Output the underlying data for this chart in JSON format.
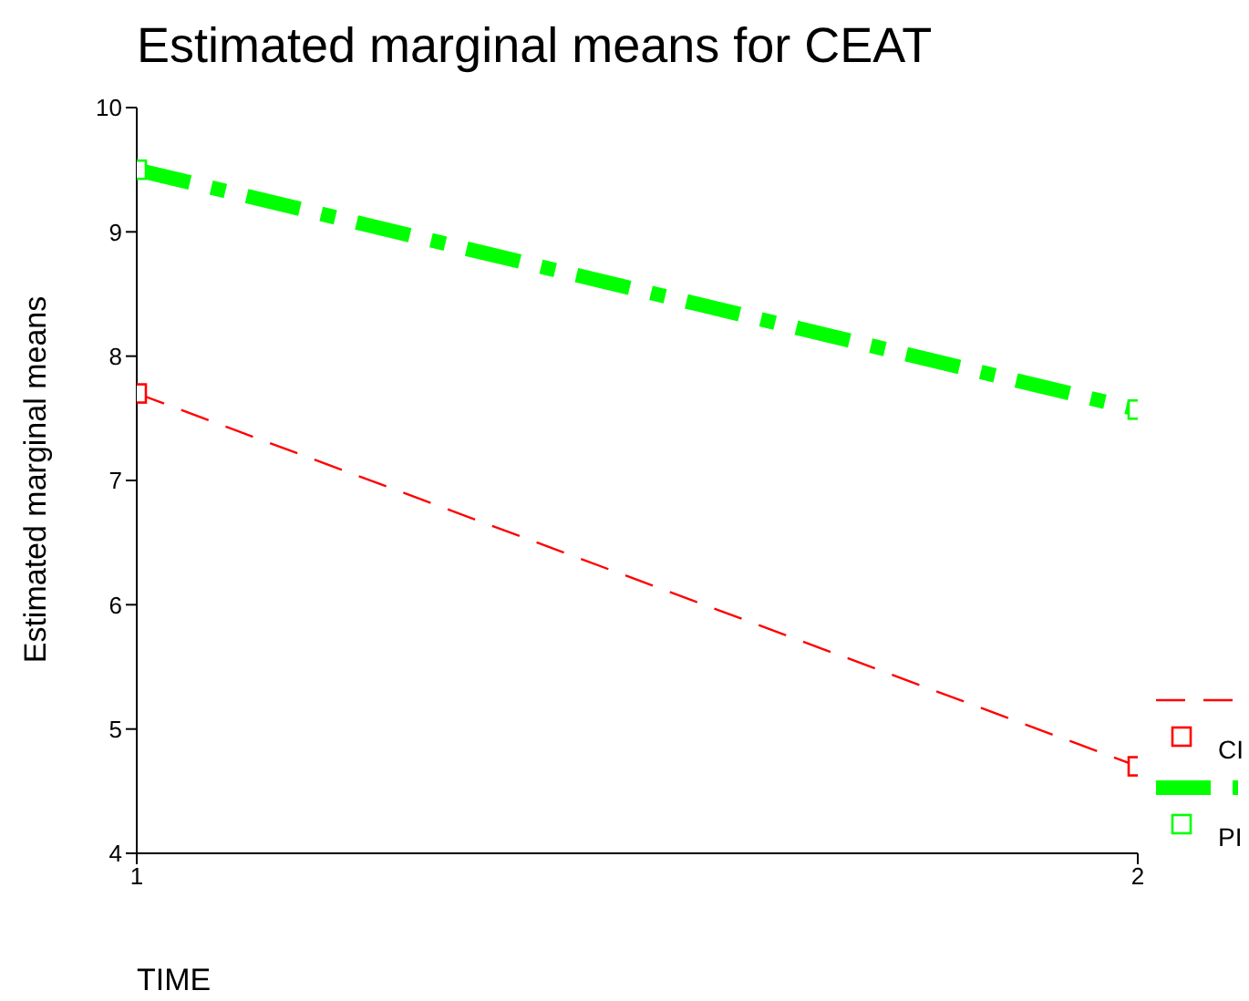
{
  "chart_data": {
    "type": "line",
    "title": "Estimated marginal means for CEAT",
    "xlabel": "TIME",
    "ylabel": "Estimated marginal means",
    "x": [
      1,
      2
    ],
    "xlim": [
      1,
      2
    ],
    "xticks": [
      1,
      2
    ],
    "ylim": [
      4,
      10
    ],
    "yticks": [
      4,
      5,
      6,
      7,
      8,
      9,
      10
    ],
    "series": [
      {
        "name": "CI",
        "color": "#ff0000",
        "values": [
          7.7,
          4.7
        ],
        "line_style": "dashed"
      },
      {
        "name": "PI",
        "color": "#00ff00",
        "values": [
          9.5,
          7.57
        ],
        "line_style": "dashed"
      }
    ],
    "marker": "square",
    "grid": false,
    "legend": "right"
  }
}
